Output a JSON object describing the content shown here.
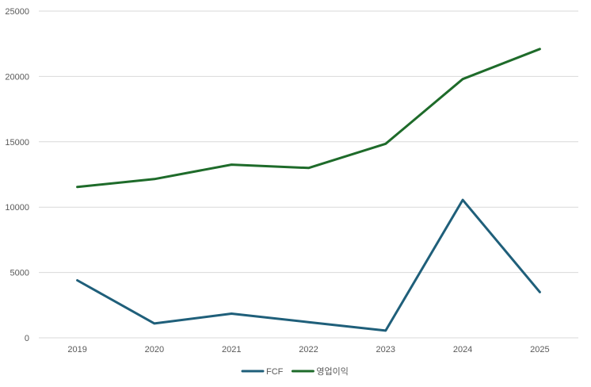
{
  "chart_data": {
    "type": "line",
    "title": "",
    "xlabel": "",
    "ylabel": "",
    "categories": [
      "2019",
      "2020",
      "2021",
      "2022",
      "2023",
      "2024",
      "2025"
    ],
    "y_ticks": [
      "0",
      "5000",
      "10000",
      "15000",
      "20000",
      "25000"
    ],
    "ylim": [
      0,
      25000
    ],
    "grid": true,
    "legend_position": "bottom",
    "series": [
      {
        "name": "FCF",
        "color": "#1f5f7a",
        "values": [
          4400,
          1100,
          1850,
          1200,
          550,
          10550,
          3500
        ]
      },
      {
        "name": "영업이익",
        "color": "#1e6b2a",
        "values": [
          11550,
          12150,
          13250,
          13000,
          14850,
          19800,
          22100
        ]
      }
    ]
  }
}
